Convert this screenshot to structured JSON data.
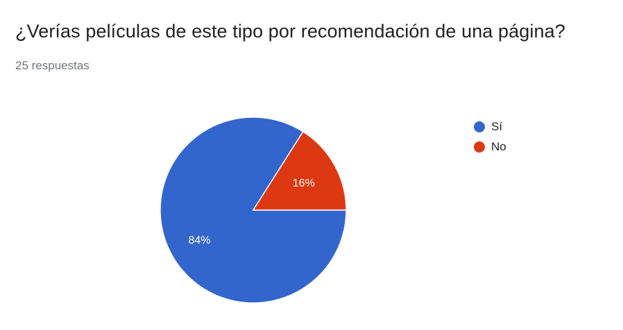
{
  "header": {
    "title": "¿Verías películas de este tipo por recomendación de una página?",
    "subtitle": "25 respuestas"
  },
  "chart_data": {
    "type": "pie",
    "title": "¿Verías películas de este tipo por recomendación de una página?",
    "categories": [
      "Sí",
      "No"
    ],
    "values": [
      84,
      16
    ],
    "labels": [
      "84%",
      "16%"
    ],
    "colors": [
      "#3366cc",
      "#dc3912"
    ],
    "legend_position": "right"
  }
}
